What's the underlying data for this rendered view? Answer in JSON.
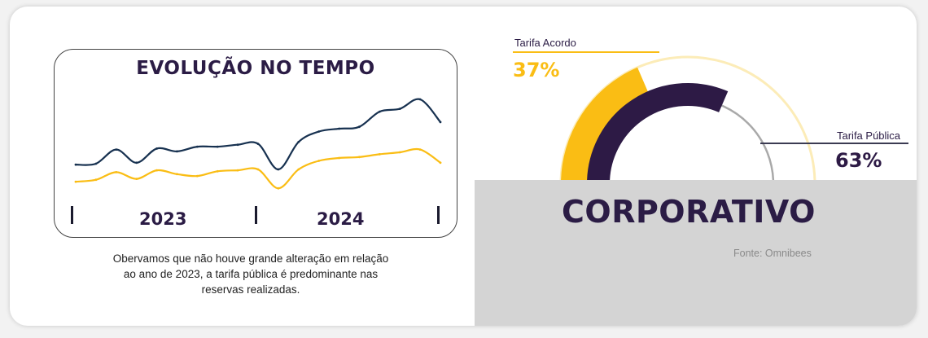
{
  "colors": {
    "navy": "#173150",
    "gold": "#fabd14",
    "purple": "#2d1a45",
    "light_gold": "#fcecb8",
    "grey_arc": "#a9a9a9",
    "panel_grey": "#d4d4d4"
  },
  "evolution": {
    "title": "EVOLUÇÃO NO TEMPO",
    "years": [
      "2023",
      "2024"
    ]
  },
  "caption_lines": [
    "Obervamos que não houve grande alteração em relação",
    "ao ano de 2023, a tarifa pública é predominante nas",
    "reservas realizadas."
  ],
  "donut": {
    "title": "CORPORATIVO",
    "source": "Fonte: Omnibees",
    "labels": [
      {
        "name": "Tarifa Acordo",
        "pct": "37%"
      },
      {
        "name": "Tarifa Pública",
        "pct": "63%"
      }
    ]
  },
  "chart_data": [
    {
      "type": "line",
      "title": "EVOLUÇÃO NO TEMPO",
      "x_period_labels": [
        "2023",
        "2024"
      ],
      "yaxis_shown": false,
      "series": [
        {
          "color": "#173150",
          "values": [
            20,
            21,
            36,
            22,
            37,
            34,
            39,
            39,
            41,
            42,
            15,
            44,
            55,
            58,
            60,
            76,
            79,
            89,
            65
          ]
        },
        {
          "color": "#fabd14",
          "values": [
            2,
            4,
            12,
            5,
            14,
            10,
            8,
            13,
            14,
            15,
            -5,
            15,
            24,
            27,
            28,
            31,
            33,
            36,
            22
          ]
        }
      ]
    },
    {
      "type": "pie",
      "title": "CORPORATIVO",
      "categories": [
        "Tarifa Acordo",
        "Tarifa Pública"
      ],
      "values": [
        37,
        63
      ],
      "colors": [
        "#fabd14",
        "#2d1a45"
      ]
    }
  ]
}
